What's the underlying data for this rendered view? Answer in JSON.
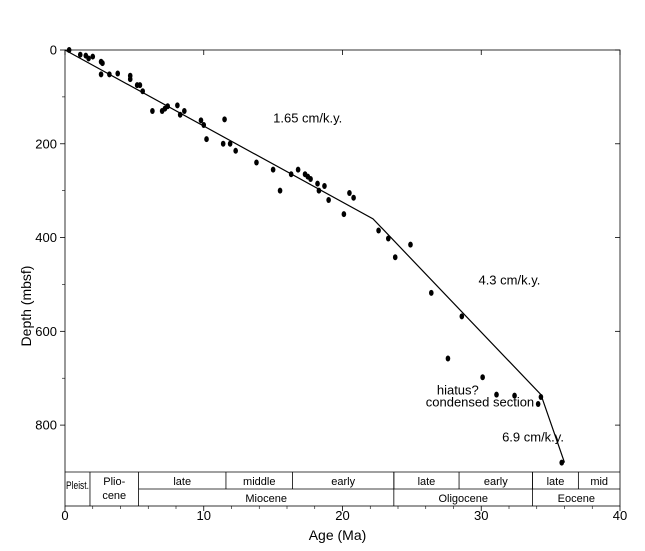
{
  "chart_data": {
    "type": "scatter",
    "xlabel": "Age (Ma)",
    "ylabel": "Depth (mbsf)",
    "xlim": [
      0,
      40
    ],
    "ylim": [
      900,
      0
    ],
    "xticks": [
      0,
      10,
      20,
      30,
      40
    ],
    "yticks": [
      0,
      200,
      400,
      600,
      800
    ],
    "grid": false,
    "series": [
      {
        "points": [
          [
            0.3,
            0
          ],
          [
            1.1,
            10
          ],
          [
            1.5,
            12
          ],
          [
            1.7,
            18
          ],
          [
            2.0,
            14
          ],
          [
            2.6,
            25
          ],
          [
            2.7,
            28
          ],
          [
            2.6,
            52
          ],
          [
            3.2,
            52
          ],
          [
            3.8,
            50
          ],
          [
            4.7,
            55
          ],
          [
            4.7,
            62
          ],
          [
            5.2,
            75
          ],
          [
            5.4,
            75
          ],
          [
            5.6,
            88
          ],
          [
            6.3,
            130
          ],
          [
            7.0,
            130
          ],
          [
            7.2,
            125
          ],
          [
            7.4,
            120
          ],
          [
            8.1,
            118
          ],
          [
            8.3,
            138
          ],
          [
            8.6,
            130
          ],
          [
            9.8,
            150
          ],
          [
            10.0,
            160
          ],
          [
            10.2,
            190
          ],
          [
            11.4,
            200
          ],
          [
            11.5,
            148
          ],
          [
            11.9,
            200
          ],
          [
            12.3,
            215
          ],
          [
            13.8,
            240
          ],
          [
            15.0,
            255
          ],
          [
            15.5,
            300
          ],
          [
            16.3,
            265
          ],
          [
            16.8,
            255
          ],
          [
            17.3,
            265
          ],
          [
            17.5,
            270
          ],
          [
            17.7,
            275
          ],
          [
            18.2,
            285
          ],
          [
            18.3,
            300
          ],
          [
            18.7,
            290
          ],
          [
            19.0,
            320
          ],
          [
            20.1,
            350
          ],
          [
            20.5,
            305
          ],
          [
            20.8,
            315
          ],
          [
            22.6,
            385
          ],
          [
            23.3,
            402
          ],
          [
            23.8,
            442
          ],
          [
            24.9,
            415
          ],
          [
            26.4,
            518
          ],
          [
            28.6,
            568
          ],
          [
            27.6,
            658
          ],
          [
            30.1,
            698
          ],
          [
            31.1,
            735
          ],
          [
            32.4,
            737
          ],
          [
            34.1,
            755
          ],
          [
            34.3,
            740
          ],
          [
            35.8,
            880
          ]
        ]
      }
    ],
    "trend_line": [
      [
        0,
        0
      ],
      [
        22.2,
        360
      ],
      [
        34.3,
        735
      ],
      [
        36.0,
        880
      ]
    ],
    "annotations": [
      {
        "text": "1.65 cm/k.y.",
        "x": 15.0,
        "y": 155
      },
      {
        "text": "4.3 cm/k.y.",
        "x": 29.8,
        "y": 500
      },
      {
        "text": "hiatus?",
        "x": 26.8,
        "y": 735
      },
      {
        "text": "condensed section",
        "x": 26.0,
        "y": 760
      },
      {
        "text": "6.9 cm/k.y.",
        "x": 31.5,
        "y": 835
      }
    ],
    "chronostratigraphy": {
      "subepochs": [
        {
          "label": "late",
          "start": 5.3,
          "end": 11.6
        },
        {
          "label": "middle",
          "start": 11.6,
          "end": 16.4
        },
        {
          "label": "early",
          "start": 16.4,
          "end": 23.7
        },
        {
          "label": "late",
          "start": 23.7,
          "end": 28.4
        },
        {
          "label": "early",
          "start": 28.4,
          "end": 33.7
        },
        {
          "label": "late",
          "start": 33.7,
          "end": 37.0
        },
        {
          "label": "mid",
          "start": 37.0,
          "end": 40.0
        }
      ],
      "epochs": [
        {
          "label": "Pleist.",
          "start": 0.0,
          "end": 1.8
        },
        {
          "label": "Plio-",
          "label2": "cene",
          "start": 1.8,
          "end": 5.3
        },
        {
          "label": "Miocene",
          "start": 5.3,
          "end": 23.7
        },
        {
          "label": "Oligocene",
          "start": 23.7,
          "end": 33.7
        },
        {
          "label": "Eocene",
          "start": 33.7,
          "end": 40.0
        }
      ]
    }
  }
}
